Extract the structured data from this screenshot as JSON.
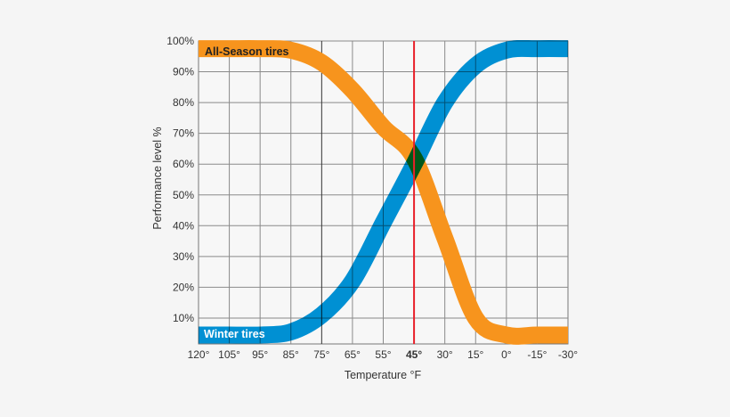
{
  "chart_data": {
    "type": "line",
    "title": "",
    "xlabel": "Temperature °F",
    "ylabel": "Performance level %",
    "categories": [
      "120°",
      "105°",
      "95°",
      "85°",
      "75°",
      "65°",
      "55°",
      "45°",
      "30°",
      "15°",
      "0°",
      "-15°",
      "-30°"
    ],
    "highlight_category": "45°",
    "yticks": [
      "10%",
      "20%",
      "30%",
      "40%",
      "50%",
      "60%",
      "70%",
      "80%",
      "90%",
      "100%"
    ],
    "ylim": [
      0,
      100
    ],
    "grid": true,
    "series": [
      {
        "name": "All-Season tires",
        "color": "#F7941D",
        "values": [
          97.5,
          97.5,
          97.5,
          97,
          93,
          84,
          72,
          62,
          36,
          10,
          4.5,
          4.5,
          4.5
        ]
      },
      {
        "name": "Winter tires",
        "color": "#0095DA",
        "values": [
          4.5,
          4.5,
          4.5,
          5.5,
          11,
          22,
          41,
          60,
          80,
          92,
          97,
          97.5,
          97.5
        ]
      }
    ],
    "marker_line_color": "#E8202A"
  }
}
